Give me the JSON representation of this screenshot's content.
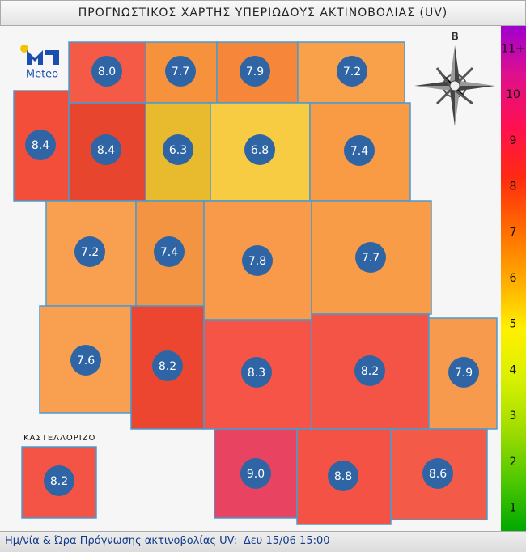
{
  "header": {
    "title": "ΠΡΟΓΝΩΣΤΙΚΟΣ ΧΑΡΤΗΣ ΥΠΕΡΙΩΔΟΥΣ ΑΚΤΙΝΟΒΟΛΙΑΣ (UV)"
  },
  "logo": {
    "text": "Meteo"
  },
  "compass": {
    "north": "Β"
  },
  "regions": [
    {
      "label": "8.0",
      "color": "#f45a45"
    },
    {
      "label": "7.7",
      "color": "#f7923c"
    },
    {
      "label": "7.9",
      "color": "#f6863a"
    },
    {
      "label": "7.2",
      "color": "#f8a04a"
    },
    {
      "label": "8.4",
      "color": "#f34e3a"
    },
    {
      "label": "8.4",
      "color": "#e8452e"
    },
    {
      "label": "6.3",
      "color": "#e8ba2e"
    },
    {
      "label": "6.8",
      "color": "#f7cb42"
    },
    {
      "label": "7.4",
      "color": "#f99b45"
    },
    {
      "label": "7.2",
      "color": "#f8a050"
    },
    {
      "label": "7.4",
      "color": "#f29442"
    },
    {
      "label": "7.8",
      "color": "#f99a4a"
    },
    {
      "label": "7.7",
      "color": "#f99c48"
    },
    {
      "label": "7.6",
      "color": "#f8a050"
    },
    {
      "label": "8.2",
      "color": "#ec4630"
    },
    {
      "label": "8.3",
      "color": "#f55446"
    },
    {
      "label": "8.2",
      "color": "#f45446"
    },
    {
      "label": "7.9",
      "color": "#f89a4e"
    },
    {
      "label": "9.0",
      "color": "#e84462"
    },
    {
      "label": "8.8",
      "color": "#f45245"
    },
    {
      "label": "8.6",
      "color": "#f45a48"
    },
    {
      "label": "8.2",
      "color": "#f45446"
    }
  ],
  "inset": {
    "label": "ΚΑΣΤΕΛΛΟΡΙΖΟ"
  },
  "legend": {
    "labels": [
      "11+",
      "10",
      "9",
      "8",
      "7",
      "6",
      "5",
      "4",
      "3",
      "2",
      "1"
    ]
  },
  "footer": {
    "label": "Ημ/νία & Ώρα Πρόγνωσης ακτινοβολίας UV:",
    "date": "Δευ 15/06 15:00"
  }
}
